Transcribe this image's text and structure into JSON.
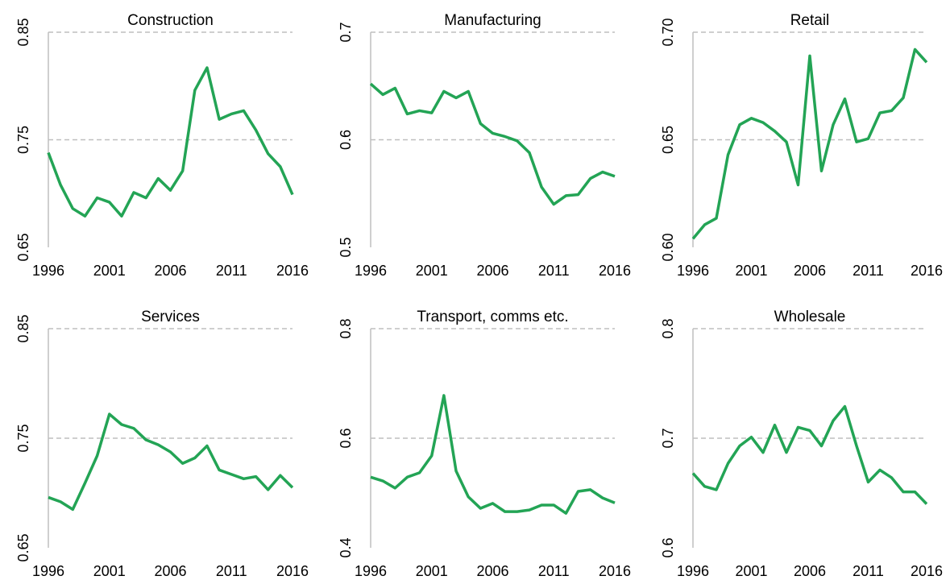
{
  "chart_data": [
    {
      "type": "line",
      "title": "Construction",
      "color": "#23a455",
      "grid": true,
      "x": [
        1996,
        1997,
        1998,
        1999,
        2000,
        2001,
        2002,
        2003,
        2004,
        2005,
        2006,
        2007,
        2008,
        2009,
        2010,
        2011,
        2012,
        2013,
        2014,
        2015,
        2016
      ],
      "values": [
        0.738,
        0.708,
        0.686,
        0.679,
        0.696,
        0.692,
        0.679,
        0.701,
        0.696,
        0.714,
        0.703,
        0.721,
        0.796,
        0.817,
        0.769,
        0.774,
        0.777,
        0.759,
        0.737,
        0.725,
        0.699
      ],
      "xlim": [
        1996,
        2016
      ],
      "xticks": [
        1996,
        2001,
        2006,
        2011,
        2016
      ],
      "ylim": [
        0.65,
        0.85
      ],
      "yticks": [
        0.65,
        0.75,
        0.85
      ]
    },
    {
      "type": "line",
      "title": "Manufacturing",
      "color": "#23a455",
      "grid": true,
      "x": [
        1996,
        1997,
        1998,
        1999,
        2000,
        2001,
        2002,
        2003,
        2004,
        2005,
        2006,
        2007,
        2008,
        2009,
        2010,
        2011,
        2012,
        2013,
        2014,
        2015,
        2016
      ],
      "values": [
        0.652,
        0.642,
        0.648,
        0.624,
        0.627,
        0.625,
        0.645,
        0.639,
        0.645,
        0.615,
        0.606,
        0.603,
        0.599,
        0.588,
        0.556,
        0.54,
        0.548,
        0.549,
        0.564,
        0.57,
        0.566
      ],
      "xlim": [
        1996,
        2016
      ],
      "xticks": [
        1996,
        2001,
        2006,
        2011,
        2016
      ],
      "ylim": [
        0.5,
        0.7
      ],
      "yticks": [
        0.5,
        0.6,
        0.7
      ]
    },
    {
      "type": "line",
      "title": "Retail",
      "color": "#23a455",
      "grid": true,
      "x": [
        1996,
        1997,
        1998,
        1999,
        2000,
        2001,
        2002,
        2003,
        2004,
        2005,
        2006,
        2007,
        2008,
        2009,
        2010,
        2011,
        2012,
        2013,
        2014,
        2015,
        2016
      ],
      "values": [
        0.604,
        0.6105,
        0.6135,
        0.643,
        0.657,
        0.66,
        0.658,
        0.654,
        0.649,
        0.629,
        0.689,
        0.6355,
        0.657,
        0.669,
        0.649,
        0.6505,
        0.6625,
        0.6635,
        0.6695,
        0.692,
        0.686
      ],
      "xlim": [
        1996,
        2016
      ],
      "xticks": [
        1996,
        2001,
        2006,
        2011,
        2016
      ],
      "ylim": [
        0.6,
        0.7
      ],
      "yticks": [
        {
          "value": 0.6,
          "label": "0.60"
        },
        0.65,
        {
          "value": 0.7,
          "label": "0.70"
        }
      ]
    },
    {
      "type": "line",
      "title": "Services",
      "color": "#23a455",
      "grid": true,
      "x": [
        1996,
        1997,
        1998,
        1999,
        2000,
        2001,
        2002,
        2003,
        2004,
        2005,
        2006,
        2007,
        2008,
        2009,
        2010,
        2011,
        2012,
        2013,
        2014,
        2015,
        2016
      ],
      "values": [
        0.696,
        0.692,
        0.685,
        0.709,
        0.734,
        0.772,
        0.7625,
        0.759,
        0.7485,
        0.744,
        0.7375,
        0.727,
        0.732,
        0.743,
        0.721,
        0.717,
        0.713,
        0.715,
        0.703,
        0.716,
        0.705
      ],
      "xlim": [
        1996,
        2016
      ],
      "xticks": [
        1996,
        2001,
        2006,
        2011,
        2016
      ],
      "ylim": [
        0.65,
        0.85
      ],
      "yticks": [
        0.65,
        0.75,
        0.85
      ]
    },
    {
      "type": "line",
      "title": "Transport, comms etc.",
      "color": "#23a455",
      "grid": true,
      "x": [
        1996,
        1997,
        1998,
        1999,
        2000,
        2001,
        2002,
        2003,
        2004,
        2005,
        2006,
        2007,
        2008,
        2009,
        2010,
        2011,
        2012,
        2013,
        2014,
        2015,
        2016
      ],
      "values": [
        0.529,
        0.522,
        0.509,
        0.529,
        0.537,
        0.568,
        0.678,
        0.54,
        0.493,
        0.472,
        0.481,
        0.466,
        0.466,
        0.469,
        0.478,
        0.478,
        0.463,
        0.503,
        0.506,
        0.491,
        0.482
      ],
      "xlim": [
        1996,
        2016
      ],
      "xticks": [
        1996,
        2001,
        2006,
        2011,
        2016
      ],
      "ylim": [
        0.4,
        0.8
      ],
      "yticks": [
        0.4,
        0.6,
        0.8
      ]
    },
    {
      "type": "line",
      "title": "Wholesale",
      "color": "#23a455",
      "grid": true,
      "x": [
        1996,
        1997,
        1998,
        1999,
        2000,
        2001,
        2002,
        2003,
        2004,
        2005,
        2006,
        2007,
        2008,
        2009,
        2010,
        2011,
        2012,
        2013,
        2014,
        2015,
        2016
      ],
      "values": [
        0.668,
        0.656,
        0.653,
        0.677,
        0.693,
        0.701,
        0.687,
        0.712,
        0.687,
        0.71,
        0.707,
        0.693,
        0.716,
        0.729,
        0.693,
        0.66,
        0.671,
        0.664,
        0.651,
        0.651,
        0.64
      ],
      "xlim": [
        1996,
        2016
      ],
      "xticks": [
        1996,
        2001,
        2006,
        2011,
        2016
      ],
      "ylim": [
        0.6,
        0.8
      ],
      "yticks": [
        0.6,
        0.7,
        0.8
      ]
    }
  ]
}
